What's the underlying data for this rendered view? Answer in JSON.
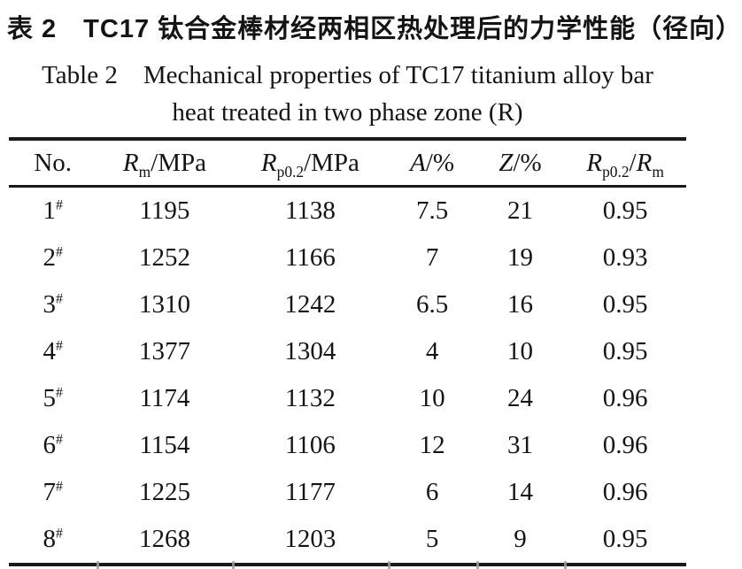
{
  "titles": {
    "zh": "表 2　TC17 钛合金棒材经两相区热处理后的力学性能（径向）",
    "en_line1": "Table 2　Mechanical properties of TC17 titanium alloy bar",
    "en_line2": "heat treated in two phase zone (R)"
  },
  "table": {
    "columns": [
      {
        "name": "No.",
        "label_rich": [
          {
            "t": "No."
          }
        ]
      },
      {
        "name": "Rm/MPa",
        "label_rich": [
          {
            "t": "R",
            "i": true
          },
          {
            "t": "m",
            "sub": true
          },
          {
            "t": "/MPa"
          }
        ]
      },
      {
        "name": "Rp0.2/MPa",
        "label_rich": [
          {
            "t": "R",
            "i": true
          },
          {
            "t": "p0.2",
            "sub": true
          },
          {
            "t": "/MPa"
          }
        ]
      },
      {
        "name": "A/%",
        "label_rich": [
          {
            "t": "A",
            "i": true
          },
          {
            "t": "/%"
          }
        ]
      },
      {
        "name": "Z/%",
        "label_rich": [
          {
            "t": "Z",
            "i": true
          },
          {
            "t": "/%"
          }
        ]
      },
      {
        "name": "Rp0.2/Rm",
        "label_rich": [
          {
            "t": "R",
            "i": true
          },
          {
            "t": "p0.2",
            "sub": true
          },
          {
            "t": "/"
          },
          {
            "t": "R",
            "i": true
          },
          {
            "t": "m",
            "sub": true
          }
        ]
      }
    ],
    "rows": [
      {
        "no": "1",
        "no_mark": "#",
        "rm": "1195",
        "rp02": "1138",
        "a": "7.5",
        "z": "21",
        "ratio": "0.95"
      },
      {
        "no": "2",
        "no_mark": "#",
        "rm": "1252",
        "rp02": "1166",
        "a": "7",
        "z": "19",
        "ratio": "0.93"
      },
      {
        "no": "3",
        "no_mark": "#",
        "rm": "1310",
        "rp02": "1242",
        "a": "6.5",
        "z": "16",
        "ratio": "0.95"
      },
      {
        "no": "4",
        "no_mark": "#",
        "rm": "1377",
        "rp02": "1304",
        "a": "4",
        "z": "10",
        "ratio": "0.95"
      },
      {
        "no": "5",
        "no_mark": "#",
        "rm": "1174",
        "rp02": "1132",
        "a": "10",
        "z": "24",
        "ratio": "0.96"
      },
      {
        "no": "6",
        "no_mark": "#",
        "rm": "1154",
        "rp02": "1106",
        "a": "12",
        "z": "31",
        "ratio": "0.96"
      },
      {
        "no": "7",
        "no_mark": "#",
        "rm": "1225",
        "rp02": "1177",
        "a": "6",
        "z": "14",
        "ratio": "0.96"
      },
      {
        "no": "8",
        "no_mark": "#",
        "rm": "1268",
        "rp02": "1203",
        "a": "5",
        "z": "9",
        "ratio": "0.95"
      }
    ]
  },
  "colors": {
    "ink": "#141414",
    "rule": "#191919",
    "seam": "#a0a0a0",
    "background": "#ffffff"
  }
}
